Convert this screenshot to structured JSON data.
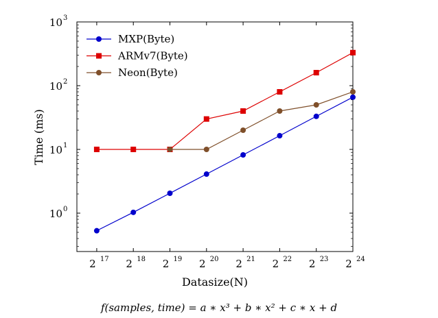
{
  "chart_data": {
    "type": "line",
    "xlabel": "Datasize(N)",
    "ylabel": "Time (ms)",
    "x_tick_labels": [
      {
        "base": "2",
        "exp": "17"
      },
      {
        "base": "2",
        "exp": "18"
      },
      {
        "base": "2",
        "exp": "19"
      },
      {
        "base": "2",
        "exp": "20"
      },
      {
        "base": "2",
        "exp": "21"
      },
      {
        "base": "2",
        "exp": "22"
      },
      {
        "base": "2",
        "exp": "23"
      },
      {
        "base": "2",
        "exp": "24"
      }
    ],
    "y_tick_labels": [
      {
        "base": "10",
        "exp": "0"
      },
      {
        "base": "10",
        "exp": "1"
      },
      {
        "base": "10",
        "exp": "2"
      },
      {
        "base": "10",
        "exp": "3"
      }
    ],
    "x": [
      131072,
      262144,
      524288,
      1048576,
      2097152,
      4194304,
      8388608,
      16777216
    ],
    "xscale": "log2",
    "yscale": "log10",
    "xlim": [
      90000,
      16777216
    ],
    "ylim": [
      0.25,
      1000
    ],
    "grid": false,
    "legend_position": "top-left",
    "series": [
      {
        "name": "MXP(Byte)",
        "color": "#0000cc",
        "marker": "circle",
        "values": [
          0.53,
          1.03,
          2.05,
          4.1,
          8.2,
          16.4,
          33,
          66
        ]
      },
      {
        "name": "ARMv7(Byte)",
        "color": "#dd0000",
        "marker": "square",
        "values": [
          10,
          10,
          10,
          30,
          40,
          80,
          160,
          330
        ]
      },
      {
        "name": "Neon(Byte)",
        "color": "#7f4f2a",
        "marker": "circle",
        "values": [
          null,
          null,
          10,
          10,
          20,
          40,
          50,
          80
        ]
      }
    ]
  },
  "caption": {
    "formula": "f(samples, time) = a ∗ x³ + b ∗ x² + c ∗ x + d"
  }
}
